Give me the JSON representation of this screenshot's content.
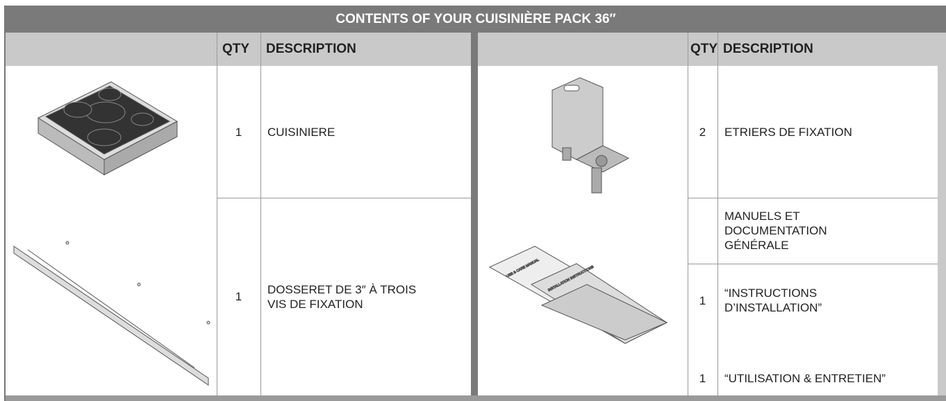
{
  "header": {
    "title": "CONTENTS OF YOUR CUISINIÈRE PACK 36″"
  },
  "table": {
    "headers": [
      "QTY",
      "DESCRIPTION",
      "QTY",
      "DESCRIPTION"
    ],
    "left": [
      {
        "qty": 1,
        "description": "CUISINIERE"
      },
      {
        "qty": 1,
        "description": "DOSSERET DE 3″ À TROIS VIS DE FIXATION"
      }
    ],
    "right": [
      {
        "qty": 2,
        "description": "ETRIERS DE FIXATION"
      },
      {
        "description": "MANUELS ET DOCUMENTATION GÉNÉRALE"
      },
      {
        "qty": 1,
        "description": "“INSTRUCTIONS D’INSTALLATION”"
      },
      {
        "qty": 1,
        "description": "“UTILISATION & ENTRETIEN”"
      }
    ]
  },
  "illustration_labels": [
    "USE & CARE MANUAL",
    "INSTALLATION INSTRUCTIONS"
  ]
}
